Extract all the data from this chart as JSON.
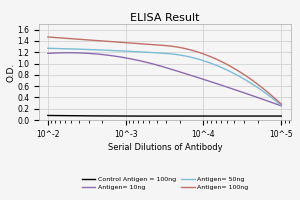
{
  "title": "ELISA Result",
  "ylabel": "O.D.",
  "xlabel": "Serial Dilutions of Antibody",
  "x_values": [
    0.01,
    0.001,
    0.0001,
    1e-05
  ],
  "control_antigen_100ng": [
    0.08,
    0.07,
    0.07,
    0.07
  ],
  "antigen_10ng": [
    1.18,
    1.1,
    0.72,
    0.25
  ],
  "antigen_50ng": [
    1.27,
    1.22,
    1.05,
    0.26
  ],
  "antigen_100ng": [
    1.47,
    1.37,
    1.17,
    0.28
  ],
  "colors": {
    "control": "#000000",
    "antigen_10ng": "#8B6BAE",
    "antigen_50ng": "#7BBDD4",
    "antigen_100ng": "#C0706A"
  },
  "ylim": [
    0,
    1.7
  ],
  "yticks": [
    0,
    0.2,
    0.4,
    0.6,
    0.8,
    1.0,
    1.2,
    1.4,
    1.6
  ],
  "xtick_labels": [
    "10^-2",
    "10^-3",
    "10^-4",
    "10^-5"
  ],
  "legend_labels": [
    "Control Antigen = 100ng",
    "Antigen= 10ng",
    "Antigen= 50ng",
    "Antigen= 100ng"
  ],
  "background_color": "#f5f5f5",
  "grid_color": "#cccccc"
}
